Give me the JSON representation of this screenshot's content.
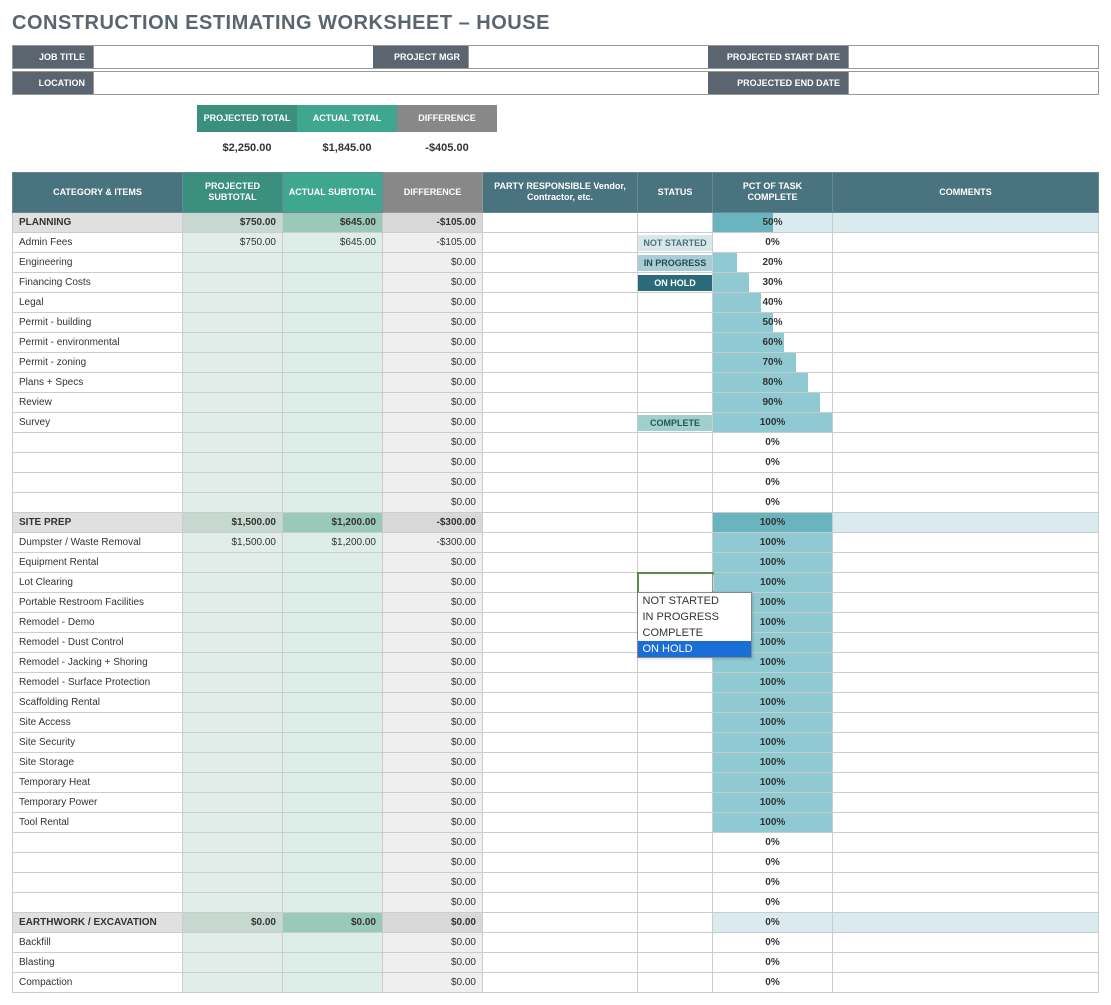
{
  "title": "CONSTRUCTION ESTIMATING WORKSHEET – HOUSE",
  "info": {
    "job_title_lbl": "JOB TITLE",
    "job_title": "",
    "project_mgr_lbl": "PROJECT MGR",
    "project_mgr": "",
    "start_lbl": "PROJECTED START DATE",
    "start": "",
    "location_lbl": "LOCATION",
    "location": "",
    "end_lbl": "PROJECTED END DATE",
    "end": ""
  },
  "totals": {
    "proj_lbl": "PROJECTED TOTAL",
    "proj": "$2,250.00",
    "act_lbl": "ACTUAL TOTAL",
    "act": "$1,845.00",
    "diff_lbl": "DIFFERENCE",
    "diff": "-$405.00"
  },
  "headers": {
    "cat": "CATEGORY & ITEMS",
    "proj": "PROJECTED SUBTOTAL",
    "act": "ACTUAL SUBTOTAL",
    "diff": "DIFFERENCE",
    "party": "PARTY RESPONSIBLE Vendor, Contractor, etc.",
    "status": "STATUS",
    "pct": "PCT OF TASK COMPLETE",
    "comments": "COMMENTS"
  },
  "dropdown": {
    "options": [
      "NOT STARTED",
      "IN PROGRESS",
      "COMPLETE",
      "ON HOLD"
    ],
    "highlighted": 3
  },
  "rows": [
    {
      "sec": true,
      "cat": "PLANNING",
      "proj": "$750.00",
      "act": "$645.00",
      "diff": "-$105.00",
      "pct": 50
    },
    {
      "cat": "Admin Fees",
      "proj": "$750.00",
      "act": "$645.00",
      "diff": "-$105.00",
      "status": "NOT STARTED",
      "st_cls": "st-not-started",
      "pct": 0,
      "show_pct": true
    },
    {
      "cat": "Engineering",
      "diff": "$0.00",
      "status": "IN PROGRESS",
      "st_cls": "st-in-progress",
      "pct": 20
    },
    {
      "cat": "Financing Costs",
      "diff": "$0.00",
      "status": "ON HOLD",
      "st_cls": "st-on-hold",
      "pct": 30
    },
    {
      "cat": "Legal",
      "diff": "$0.00",
      "pct": 40
    },
    {
      "cat": "Permit - building",
      "diff": "$0.00",
      "pct": 50
    },
    {
      "cat": "Permit - environmental",
      "diff": "$0.00",
      "pct": 60
    },
    {
      "cat": "Permit - zoning",
      "diff": "$0.00",
      "pct": 70
    },
    {
      "cat": "Plans + Specs",
      "diff": "$0.00",
      "pct": 80
    },
    {
      "cat": "Review",
      "diff": "$0.00",
      "pct": 90
    },
    {
      "cat": "Survey",
      "diff": "$0.00",
      "status": "COMPLETE",
      "st_cls": "st-complete",
      "pct": 100
    },
    {
      "cat": "",
      "diff": "$0.00",
      "pct": 0,
      "show_pct": true
    },
    {
      "cat": "",
      "diff": "$0.00",
      "pct": 0,
      "show_pct": true
    },
    {
      "cat": "",
      "diff": "$0.00",
      "pct": 0,
      "show_pct": true
    },
    {
      "cat": "",
      "diff": "$0.00",
      "pct": 0,
      "show_pct": true
    },
    {
      "sec": true,
      "cat": "SITE PREP",
      "proj": "$1,500.00",
      "act": "$1,200.00",
      "diff": "-$300.00",
      "pct": 100
    },
    {
      "cat": "Dumpster / Waste Removal",
      "proj": "$1,500.00",
      "act": "$1,200.00",
      "diff": "-$300.00",
      "pct": 100
    },
    {
      "cat": "Equipment Rental",
      "diff": "$0.00",
      "pct": 100
    },
    {
      "cat": "Lot Clearing",
      "diff": "$0.00",
      "pct": 100,
      "dd": true
    },
    {
      "cat": "Portable Restroom Facilities",
      "diff": "$0.00",
      "pct": 100
    },
    {
      "cat": "Remodel - Demo",
      "diff": "$0.00",
      "pct": 100
    },
    {
      "cat": "Remodel - Dust Control",
      "diff": "$0.00",
      "pct": 100
    },
    {
      "cat": "Remodel - Jacking + Shoring",
      "diff": "$0.00",
      "pct": 100
    },
    {
      "cat": "Remodel - Surface Protection",
      "diff": "$0.00",
      "pct": 100
    },
    {
      "cat": "Scaffolding Rental",
      "diff": "$0.00",
      "pct": 100
    },
    {
      "cat": "Site Access",
      "diff": "$0.00",
      "pct": 100
    },
    {
      "cat": "Site Security",
      "diff": "$0.00",
      "pct": 100
    },
    {
      "cat": "Site Storage",
      "diff": "$0.00",
      "pct": 100
    },
    {
      "cat": "Temporary Heat",
      "diff": "$0.00",
      "pct": 100
    },
    {
      "cat": "Temporary Power",
      "diff": "$0.00",
      "pct": 100
    },
    {
      "cat": "Tool Rental",
      "diff": "$0.00",
      "pct": 100
    },
    {
      "cat": "",
      "diff": "$0.00",
      "pct": 0,
      "show_pct": true
    },
    {
      "cat": "",
      "diff": "$0.00",
      "pct": 0,
      "show_pct": true
    },
    {
      "cat": "",
      "diff": "$0.00",
      "pct": 0,
      "show_pct": true
    },
    {
      "cat": "",
      "diff": "$0.00",
      "pct": 0,
      "show_pct": true
    },
    {
      "sec": true,
      "cat": "EARTHWORK / EXCAVATION",
      "proj": "$0.00",
      "act": "$0.00",
      "diff": "$0.00",
      "pct": 0,
      "show_pct": true
    },
    {
      "cat": "Backfill",
      "diff": "$0.00",
      "pct": 0,
      "show_pct": true
    },
    {
      "cat": "Blasting",
      "diff": "$0.00",
      "pct": 0,
      "show_pct": true
    },
    {
      "cat": "Compaction",
      "diff": "$0.00",
      "pct": 0,
      "show_pct": true
    }
  ]
}
